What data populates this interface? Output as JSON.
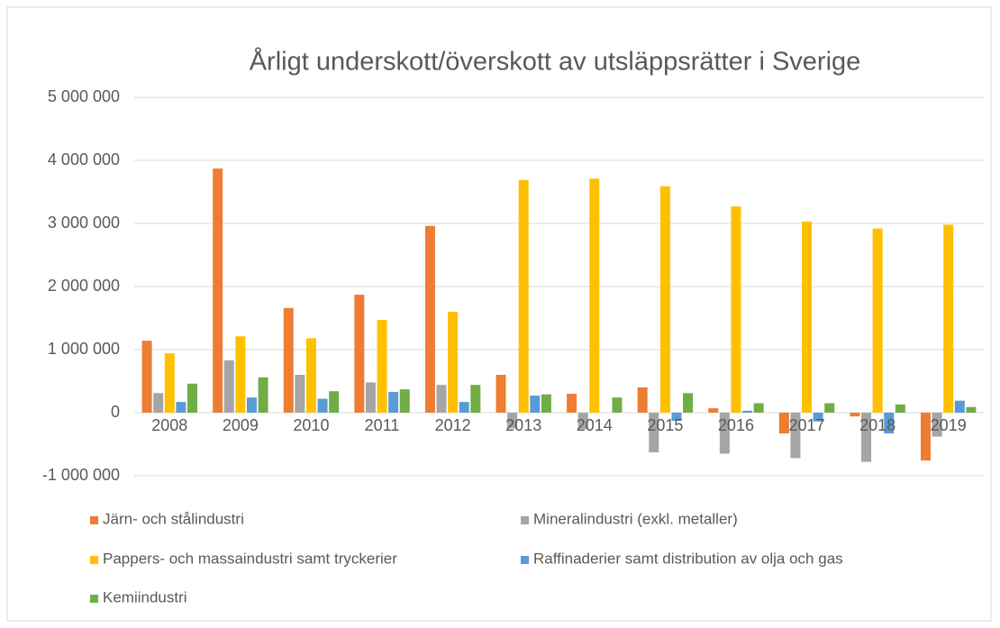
{
  "chart_data": {
    "type": "bar",
    "title": "Årligt underskott/överskott av utsläppsrätter i Sverige",
    "categories": [
      "2008",
      "2009",
      "2010",
      "2011",
      "2012",
      "2013",
      "2014",
      "2015",
      "2016",
      "2017",
      "2018",
      "2019"
    ],
    "series": [
      {
        "name": "Järn- och stålindustri",
        "color": "#ed7d31",
        "values": [
          1140000,
          3870000,
          1660000,
          1870000,
          2960000,
          600000,
          300000,
          400000,
          70000,
          -330000,
          -60000,
          -760000
        ]
      },
      {
        "name": "Mineralindustri (exkl. metaller)",
        "color": "#a5a5a5",
        "values": [
          310000,
          830000,
          600000,
          480000,
          440000,
          -250000,
          -260000,
          -630000,
          -650000,
          -720000,
          -780000,
          -380000
        ]
      },
      {
        "name": "Pappers- och massaindustri samt tryckerier",
        "color": "#ffc000",
        "values": [
          940000,
          1210000,
          1180000,
          1470000,
          1600000,
          3690000,
          3710000,
          3590000,
          3270000,
          3030000,
          2920000,
          2980000
        ]
      },
      {
        "name": "Raffinaderier samt distribution av olja och gas",
        "color": "#5b9bd5",
        "values": [
          170000,
          240000,
          220000,
          330000,
          170000,
          270000,
          0,
          -130000,
          30000,
          -140000,
          -330000,
          190000
        ]
      },
      {
        "name": "Kemiindustri",
        "color": "#70ad47",
        "values": [
          460000,
          560000,
          340000,
          370000,
          440000,
          290000,
          240000,
          310000,
          150000,
          150000,
          130000,
          90000
        ]
      }
    ],
    "ylim": [
      -1000000,
      5000000
    ],
    "yticks": [
      {
        "value": -1000000,
        "label": "-1 000 000"
      },
      0,
      {
        "value": 1000000,
        "label": "1 000 000"
      },
      {
        "value": 2000000,
        "label": "2 000 000"
      },
      {
        "value": 3000000,
        "label": "3 000 000"
      },
      {
        "value": 4000000,
        "label": "4 000 000"
      },
      {
        "value": 5000000,
        "label": "5 000 000"
      }
    ],
    "grid": true,
    "legend": "bottom"
  }
}
